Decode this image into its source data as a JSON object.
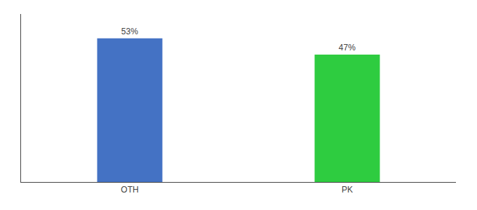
{
  "chart_data": {
    "type": "bar",
    "categories": [
      "OTH",
      "PK"
    ],
    "values": [
      53,
      47
    ],
    "value_labels": [
      "53%",
      "47%"
    ],
    "data_labels": true,
    "colors": [
      "#4472c4",
      "#2ecc40"
    ],
    "ylim": [
      0,
      62
    ],
    "grid": false,
    "tick_labels": "x"
  }
}
